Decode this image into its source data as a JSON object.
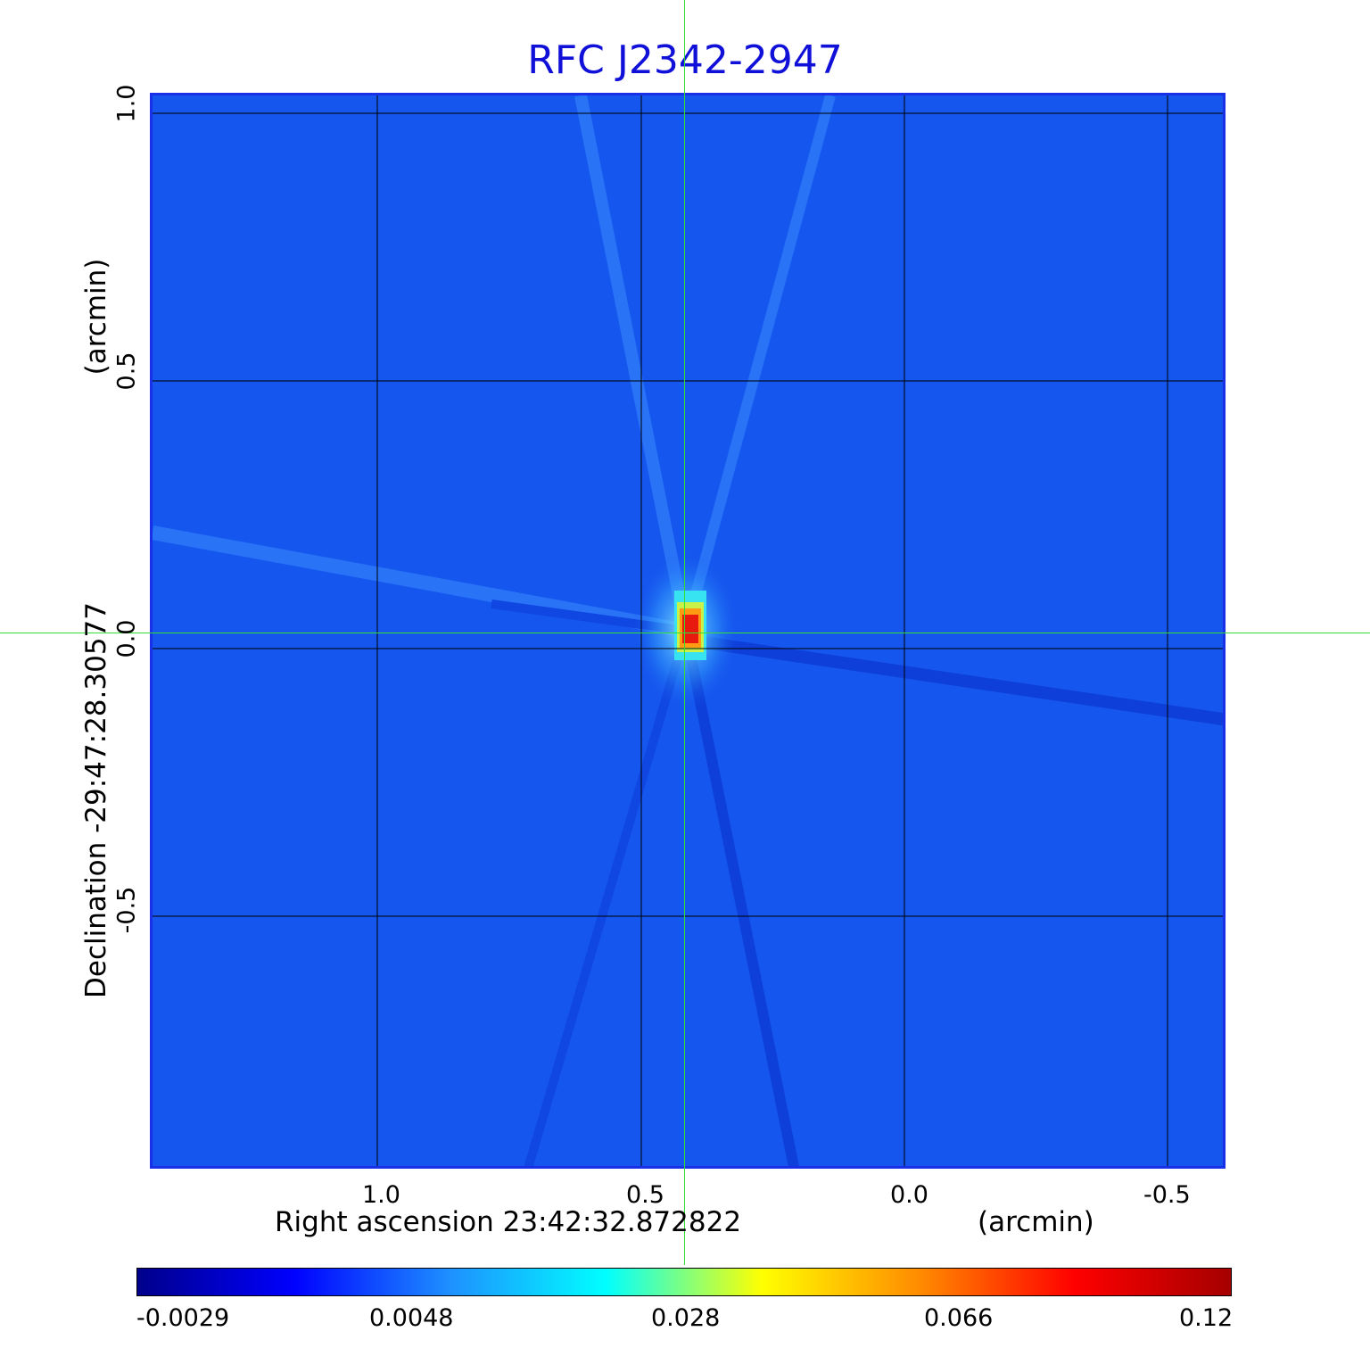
{
  "title": "RFC J2342-2947",
  "x_axis": {
    "label": "Right ascension  23:42:32.872822",
    "unit": "(arcmin)",
    "ticks": [
      "1.0",
      "0.5",
      "0.0",
      "-0.5"
    ]
  },
  "y_axis": {
    "label": "Declination  -29:47:28.30577",
    "unit": "(arcmin)",
    "ticks": [
      "1.0",
      "0.5",
      "0.0",
      "-0.5"
    ]
  },
  "colorbar": {
    "ticks": [
      "-0.0029",
      "0.0048",
      "0.028",
      "0.066",
      "0.12"
    ],
    "colors": [
      "#00008b",
      "#0000ff",
      "#1e90ff",
      "#00ffff",
      "#ffff00",
      "#ff8c00",
      "#ff0000",
      "#a50000"
    ]
  },
  "colors": {
    "background_map": "#1556ee",
    "title": "#1010d8",
    "crosshair": "#33e033",
    "grid": "#000000"
  }
}
